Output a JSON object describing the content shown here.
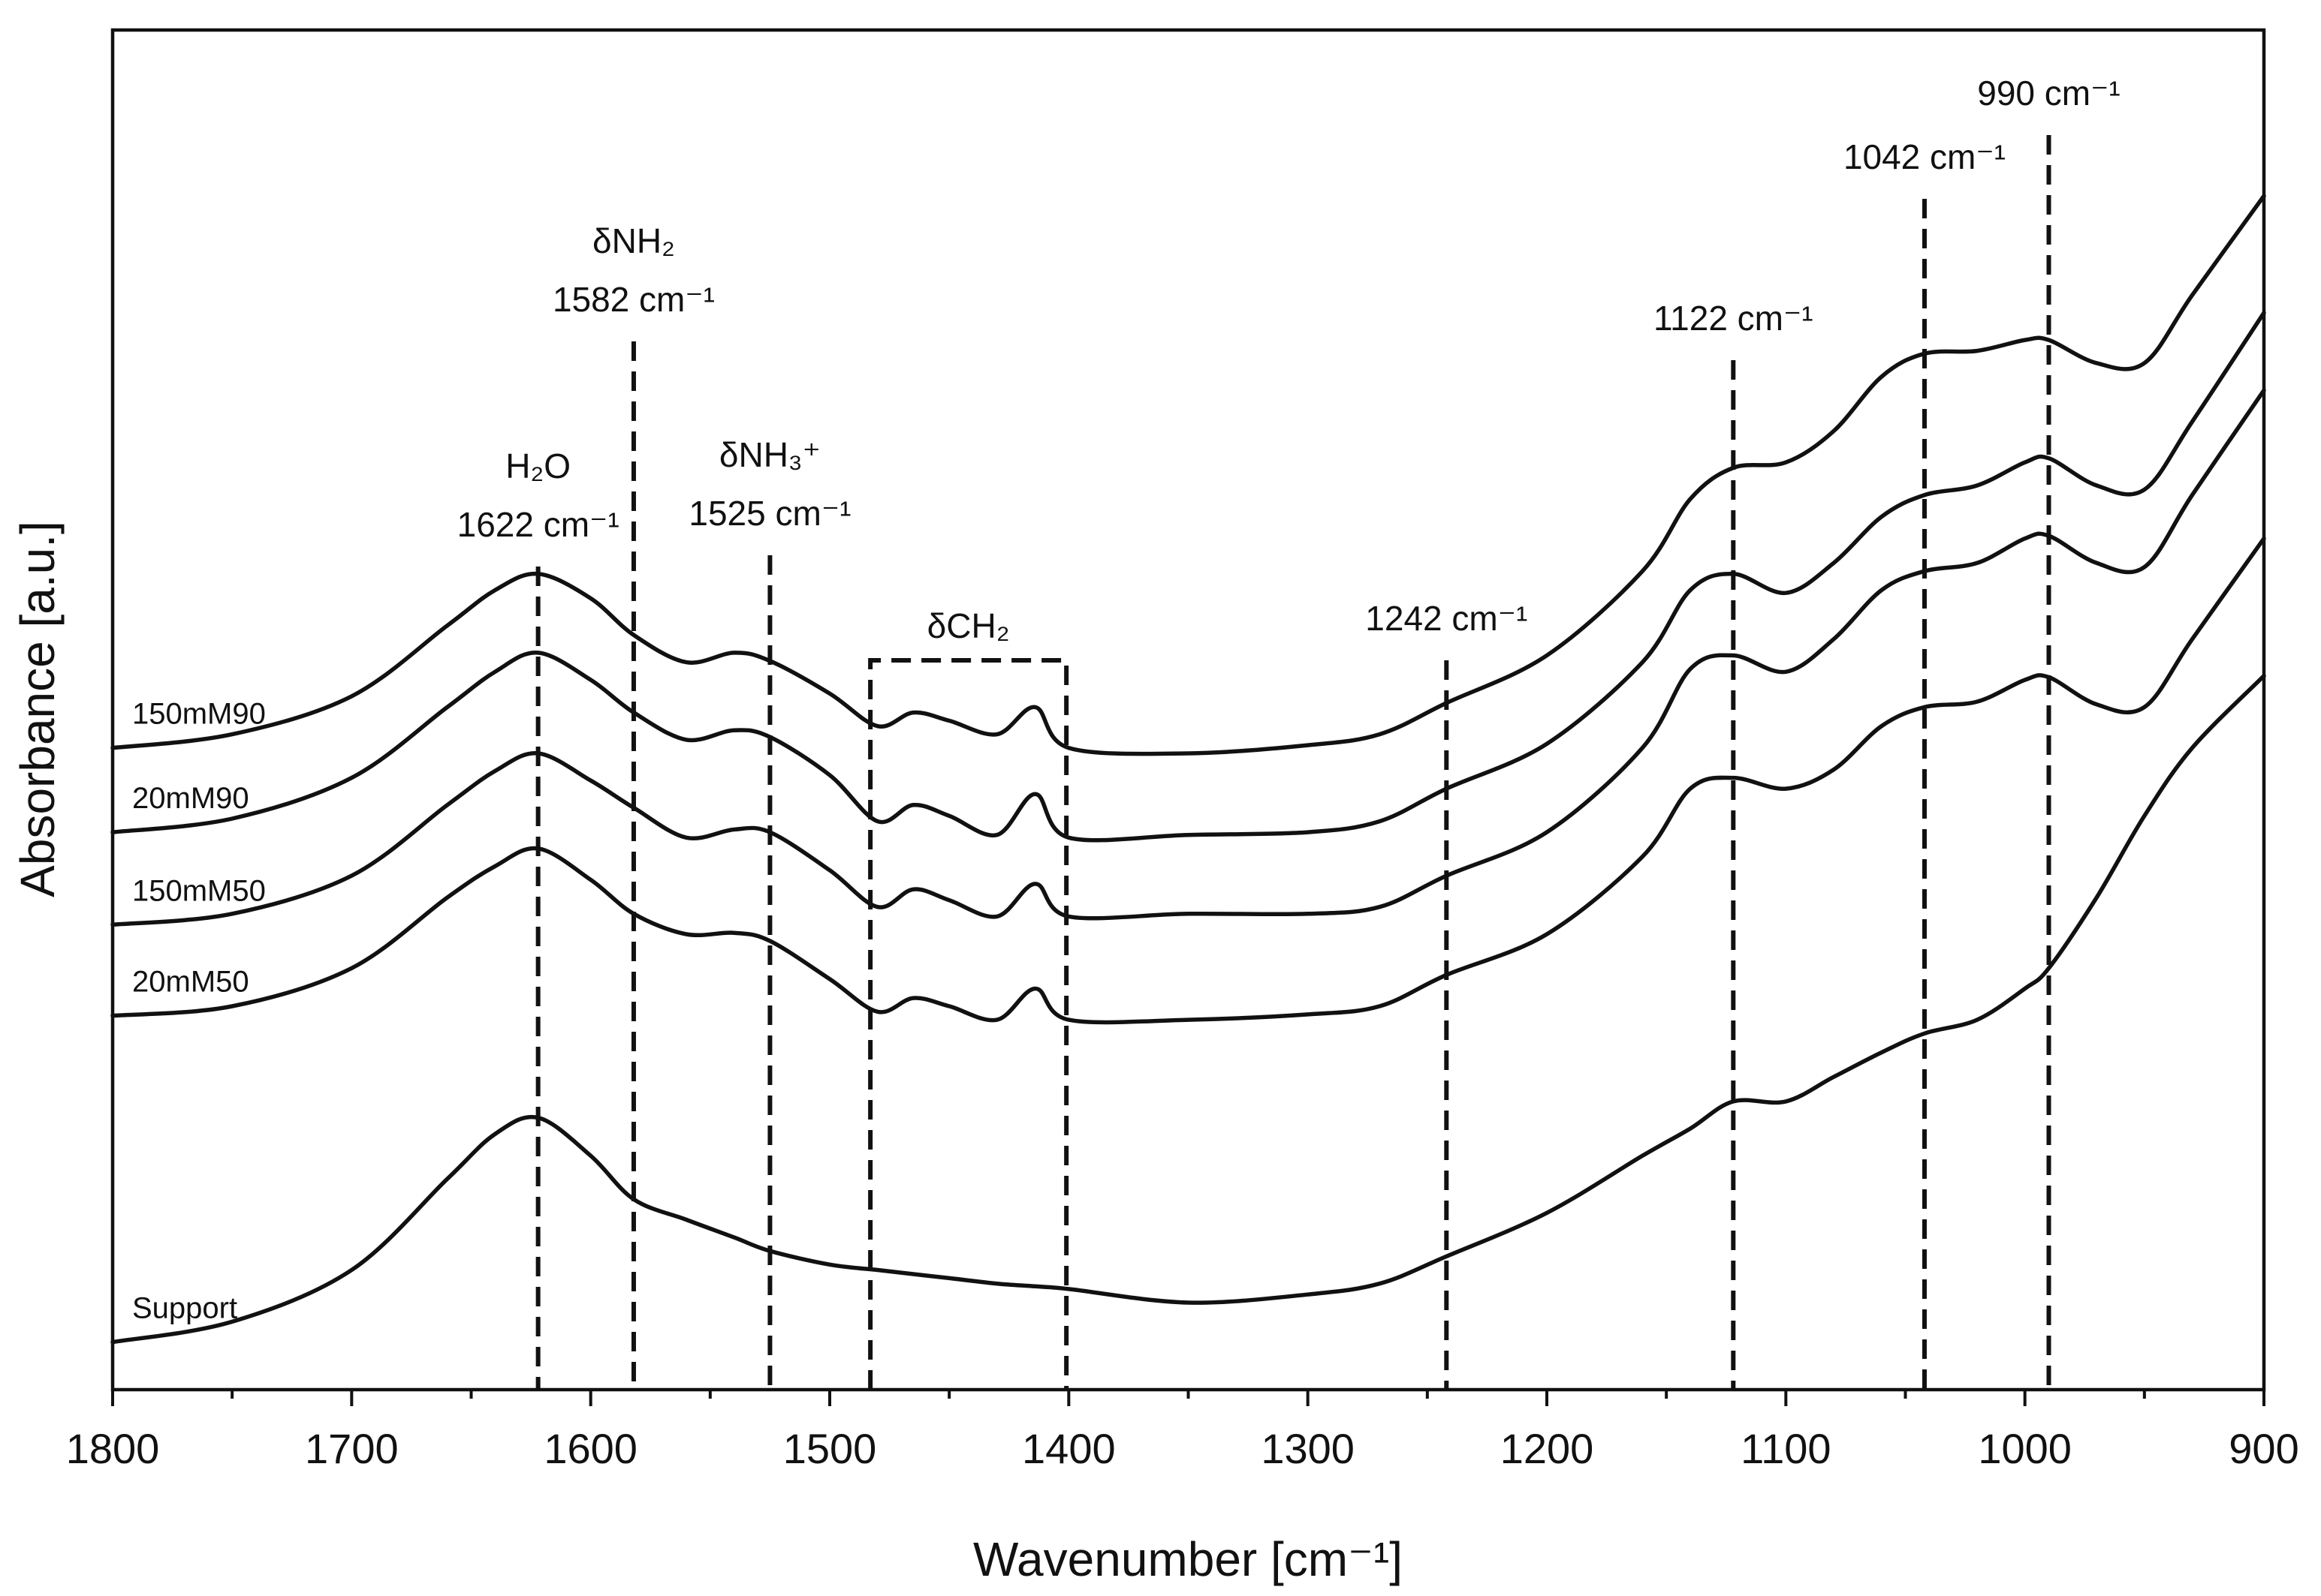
{
  "chart_data": {
    "type": "line",
    "xlabel": "Wavenumber [cm⁻¹]",
    "ylabel": "Absorbance [a.u.]",
    "xlim": [
      1800,
      900
    ],
    "ylim": [
      0,
      10
    ],
    "x_ticks": [
      1800,
      1700,
      1600,
      1500,
      1400,
      1300,
      1200,
      1100,
      1000,
      900
    ],
    "y_ticks_shown": false,
    "series": [
      {
        "name": "150mM90",
        "x": [
          1800,
          1750,
          1700,
          1660,
          1640,
          1622,
          1600,
          1582,
          1560,
          1540,
          1525,
          1500,
          1480,
          1465,
          1450,
          1430,
          1414,
          1400,
          1350,
          1300,
          1270,
          1242,
          1200,
          1160,
          1140,
          1122,
          1100,
          1080,
          1060,
          1042,
          1020,
          1000,
          990,
          970,
          950,
          930,
          900
        ],
        "y": [
          4.72,
          4.82,
          5.1,
          5.62,
          5.88,
          6.0,
          5.82,
          5.55,
          5.35,
          5.42,
          5.36,
          5.12,
          4.88,
          4.98,
          4.92,
          4.82,
          5.02,
          4.72,
          4.68,
          4.74,
          4.82,
          5.05,
          5.4,
          6.02,
          6.55,
          6.78,
          6.82,
          7.05,
          7.45,
          7.62,
          7.64,
          7.72,
          7.72,
          7.55,
          7.55,
          8.05,
          8.78
        ]
      },
      {
        "name": "20mM90",
        "x": [
          1800,
          1750,
          1700,
          1660,
          1640,
          1622,
          1600,
          1582,
          1560,
          1540,
          1525,
          1500,
          1480,
          1465,
          1450,
          1430,
          1414,
          1400,
          1350,
          1300,
          1270,
          1242,
          1200,
          1160,
          1140,
          1122,
          1100,
          1080,
          1060,
          1042,
          1020,
          1000,
          990,
          970,
          950,
          930,
          900
        ],
        "y": [
          4.1,
          4.2,
          4.5,
          5.02,
          5.28,
          5.42,
          5.22,
          4.98,
          4.78,
          4.85,
          4.8,
          4.52,
          4.18,
          4.3,
          4.22,
          4.08,
          4.38,
          4.06,
          4.08,
          4.1,
          4.18,
          4.42,
          4.75,
          5.35,
          5.88,
          6.0,
          5.86,
          6.08,
          6.42,
          6.58,
          6.65,
          6.82,
          6.85,
          6.65,
          6.62,
          7.12,
          7.92
        ]
      },
      {
        "name": "150mM50",
        "x": [
          1800,
          1750,
          1700,
          1660,
          1640,
          1622,
          1600,
          1582,
          1560,
          1540,
          1525,
          1500,
          1480,
          1465,
          1450,
          1430,
          1414,
          1400,
          1350,
          1300,
          1270,
          1242,
          1200,
          1160,
          1140,
          1122,
          1100,
          1080,
          1060,
          1042,
          1020,
          1000,
          990,
          970,
          950,
          930,
          900
        ],
        "y": [
          3.42,
          3.5,
          3.78,
          4.3,
          4.55,
          4.68,
          4.48,
          4.28,
          4.06,
          4.12,
          4.1,
          3.82,
          3.55,
          3.68,
          3.6,
          3.48,
          3.72,
          3.48,
          3.5,
          3.5,
          3.55,
          3.78,
          4.1,
          4.72,
          5.3,
          5.4,
          5.28,
          5.52,
          5.88,
          6.02,
          6.08,
          6.26,
          6.28,
          6.08,
          6.05,
          6.58,
          7.35
        ]
      },
      {
        "name": "20mM50",
        "x": [
          1800,
          1750,
          1700,
          1660,
          1640,
          1622,
          1600,
          1582,
          1560,
          1540,
          1525,
          1500,
          1480,
          1465,
          1450,
          1430,
          1414,
          1400,
          1350,
          1300,
          1270,
          1242,
          1200,
          1160,
          1140,
          1122,
          1100,
          1080,
          1060,
          1042,
          1020,
          1000,
          990,
          970,
          950,
          930,
          900
        ],
        "y": [
          2.75,
          2.82,
          3.1,
          3.62,
          3.85,
          3.98,
          3.75,
          3.5,
          3.35,
          3.36,
          3.3,
          3.02,
          2.78,
          2.88,
          2.82,
          2.72,
          2.95,
          2.72,
          2.72,
          2.76,
          2.82,
          3.05,
          3.35,
          3.92,
          4.42,
          4.5,
          4.42,
          4.56,
          4.88,
          5.02,
          5.06,
          5.22,
          5.24,
          5.04,
          5.02,
          5.52,
          6.26
        ]
      },
      {
        "name": "Support",
        "x": [
          1800,
          1750,
          1700,
          1660,
          1640,
          1622,
          1600,
          1582,
          1560,
          1540,
          1525,
          1500,
          1480,
          1465,
          1450,
          1430,
          1414,
          1400,
          1350,
          1300,
          1270,
          1242,
          1200,
          1160,
          1140,
          1122,
          1100,
          1080,
          1060,
          1042,
          1020,
          1000,
          990,
          970,
          950,
          930,
          900
        ],
        "y": [
          0.35,
          0.5,
          0.88,
          1.55,
          1.88,
          2.0,
          1.72,
          1.4,
          1.25,
          1.12,
          1.02,
          0.92,
          0.88,
          0.85,
          0.82,
          0.78,
          0.76,
          0.74,
          0.64,
          0.7,
          0.78,
          0.98,
          1.3,
          1.72,
          1.92,
          2.12,
          2.12,
          2.3,
          2.48,
          2.62,
          2.72,
          2.95,
          3.1,
          3.62,
          4.22,
          4.72,
          5.25
        ]
      }
    ],
    "annotations": [
      {
        "label_main": "H₂O",
        "label_sub": "1622 cm⁻¹",
        "x": 1622
      },
      {
        "label_main": "δNH₂",
        "label_sub": "1582 cm⁻¹",
        "x": 1582
      },
      {
        "label_main": "δNH₃⁺",
        "label_sub": "1525 cm⁻¹",
        "x": 1525
      },
      {
        "label_main": "",
        "label_sub": "1242 cm⁻¹",
        "x": 1242
      },
      {
        "label_main": "",
        "label_sub": "1122 cm⁻¹",
        "x": 1122
      },
      {
        "label_main": "",
        "label_sub": "1042 cm⁻¹",
        "x": 1042
      },
      {
        "label_main": "",
        "label_sub": "990 cm⁻¹",
        "x": 990
      }
    ],
    "region_box": {
      "label": "δCH₂",
      "x_from": 1483,
      "x_to": 1401
    }
  }
}
